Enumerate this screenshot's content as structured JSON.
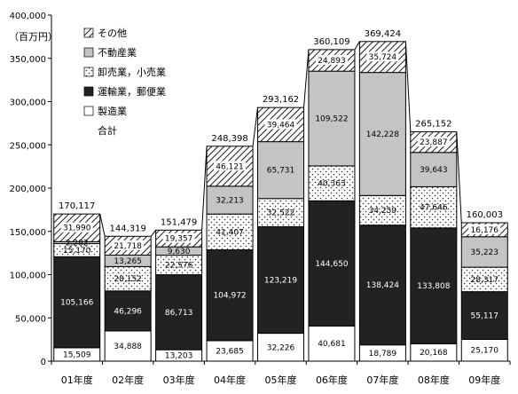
{
  "chart_data": {
    "type": "bar",
    "stacked": true,
    "unit_label": "（百万円）",
    "categories": [
      "01年度",
      "02年度",
      "03年度",
      "04年度",
      "05年度",
      "06年度",
      "07年度",
      "08年度",
      "09年度"
    ],
    "ylim": [
      0,
      400000
    ],
    "yticks": [
      "0",
      "50,000",
      "100,000",
      "150,000",
      "200,000",
      "250,000",
      "300,000",
      "350,000",
      "400,000"
    ],
    "series": [
      {
        "name": "製造業",
        "pattern": "white",
        "values": [
          15509,
          34888,
          13203,
          23685,
          32226,
          40681,
          18789,
          20168,
          25170
        ],
        "labels": [
          "15,509",
          "34,888",
          "13,203",
          "23,685",
          "32,226",
          "40,681",
          "18,789",
          "20,168",
          "25,170"
        ]
      },
      {
        "name": "運輸業，郵便業",
        "pattern": "black",
        "values": [
          105166,
          46296,
          86713,
          104972,
          123219,
          144650,
          138424,
          133808,
          55117
        ],
        "labels": [
          "105,166",
          "46,296",
          "86,713",
          "104,972",
          "123,219",
          "144,650",
          "138,424",
          "133,808",
          "55,117"
        ]
      },
      {
        "name": "卸売業，小売業",
        "pattern": "dots",
        "values": [
          15170,
          28152,
          22576,
          41407,
          32522,
          40363,
          34259,
          47646,
          28317
        ],
        "labels": [
          "15,170",
          "28,152",
          "22,576",
          "41,407",
          "32,522",
          "40,363",
          "34,259",
          "47,646",
          "28,317"
        ]
      },
      {
        "name": "不動産業",
        "pattern": "gray",
        "values": [
          2282,
          13265,
          9630,
          32213,
          65731,
          109522,
          142228,
          39643,
          35223
        ],
        "labels": [
          "2,282",
          "13,265",
          "9,630",
          "32,213",
          "65,731",
          "109,522",
          "142,228",
          "39,643",
          "35,223"
        ]
      },
      {
        "name": "その他",
        "pattern": "hatch",
        "values": [
          31990,
          21718,
          19357,
          46121,
          39464,
          24893,
          35724,
          23887,
          16176
        ],
        "labels": [
          "31,990",
          "21,718",
          "19,357",
          "46,121",
          "39,464",
          "24,893",
          "35,724",
          "23,887",
          "16,176"
        ]
      }
    ],
    "totals_name": "合計",
    "totals": [
      170117,
      144319,
      151479,
      248398,
      293162,
      360109,
      369424,
      265152,
      160003
    ],
    "totals_labels": [
      "170,117",
      "144,319",
      "151,479",
      "248,398",
      "293,162",
      "360,109",
      "369,424",
      "265,152",
      "160,003"
    ],
    "legend": [
      "その他",
      "不動産業",
      "卸売業，小売業",
      "運輸業，郵便業",
      "製造業",
      "合計"
    ],
    "legend_position": "top-left",
    "grid": false
  }
}
